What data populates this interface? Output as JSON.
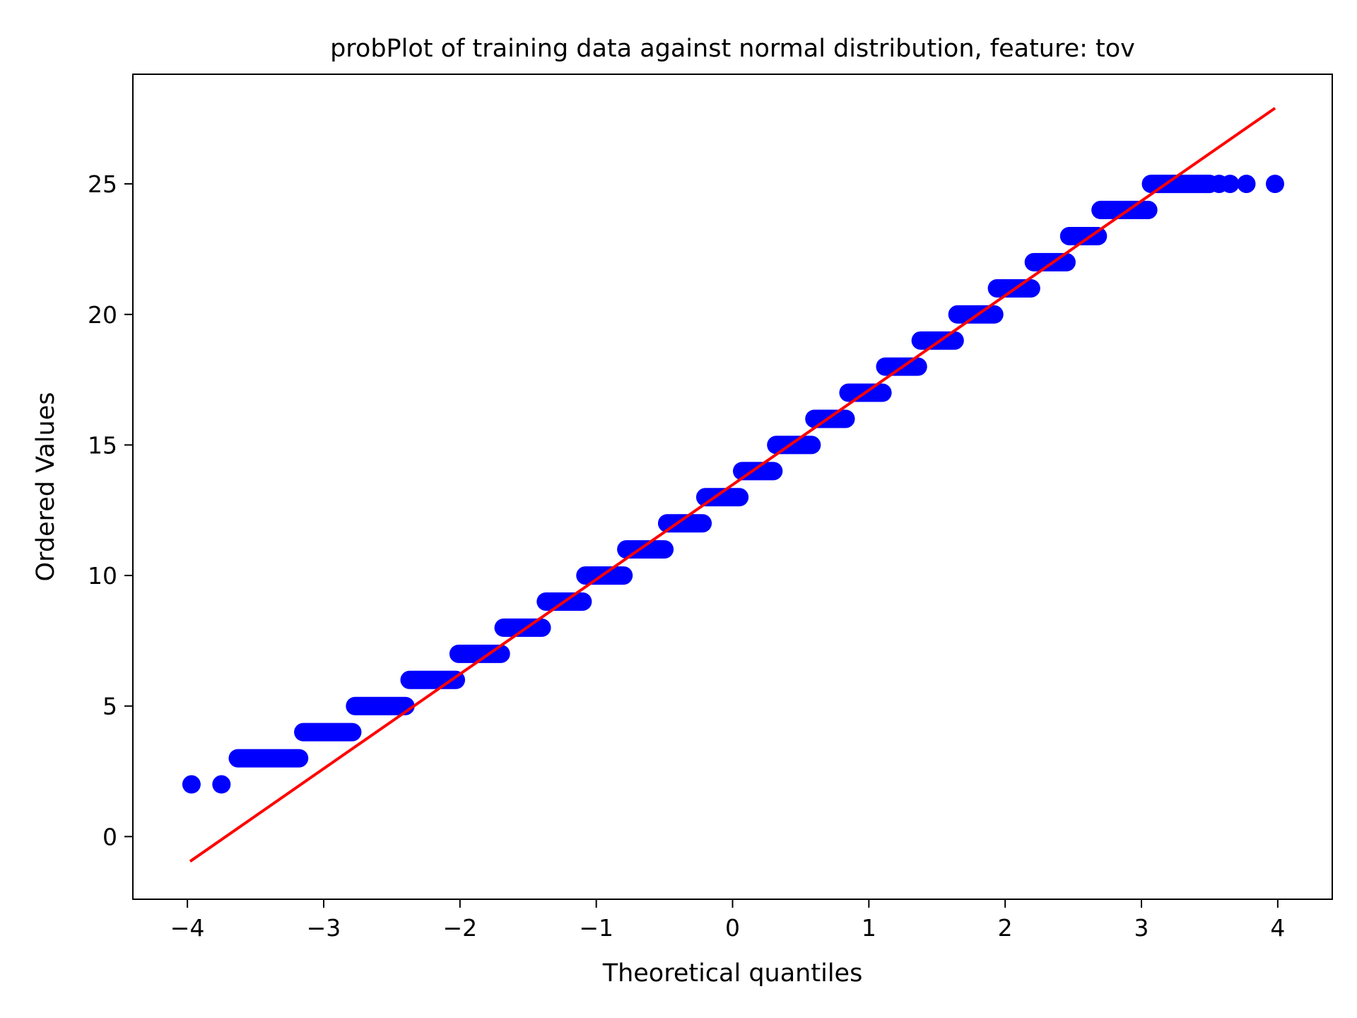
{
  "chart_data": {
    "type": "scatter",
    "title": "probPlot of training data against normal distribution, feature: tov",
    "xlabel": "Theoretical quantiles",
    "ylabel": "Ordered Values",
    "xlim": [
      -4.4,
      4.4
    ],
    "ylim": [
      -2.4,
      29.2
    ],
    "x_ticks": [
      -4,
      -3,
      -2,
      -1,
      0,
      1,
      2,
      3,
      4
    ],
    "x_tick_labels": [
      "−4",
      "−3",
      "−2",
      "−1",
      "0",
      "1",
      "2",
      "3",
      "4"
    ],
    "y_ticks": [
      0,
      5,
      10,
      15,
      20,
      25
    ],
    "y_tick_labels": [
      "0",
      "5",
      "10",
      "15",
      "20",
      "25"
    ],
    "grid": false,
    "series": [
      {
        "kind": "points",
        "color": "#0000ff",
        "segments": [
          {
            "y": 2,
            "x_from": -3.97,
            "x_to": -3.97
          },
          {
            "y": 2,
            "x_from": -3.75,
            "x_to": -3.75
          },
          {
            "y": 3,
            "x_from": -3.63,
            "x_to": -3.18
          },
          {
            "y": 4,
            "x_from": -3.15,
            "x_to": -2.79
          },
          {
            "y": 5,
            "x_from": -2.77,
            "x_to": -2.4
          },
          {
            "y": 6,
            "x_from": -2.37,
            "x_to": -2.03
          },
          {
            "y": 7,
            "x_from": -2.01,
            "x_to": -1.7
          },
          {
            "y": 8,
            "x_from": -1.68,
            "x_to": -1.4
          },
          {
            "y": 9,
            "x_from": -1.37,
            "x_to": -1.1
          },
          {
            "y": 10,
            "x_from": -1.08,
            "x_to": -0.8
          },
          {
            "y": 11,
            "x_from": -0.78,
            "x_to": -0.5
          },
          {
            "y": 12,
            "x_from": -0.48,
            "x_to": -0.22
          },
          {
            "y": 13,
            "x_from": -0.2,
            "x_to": 0.05
          },
          {
            "y": 14,
            "x_from": 0.07,
            "x_to": 0.3
          },
          {
            "y": 15,
            "x_from": 0.32,
            "x_to": 0.58
          },
          {
            "y": 16,
            "x_from": 0.6,
            "x_to": 0.83
          },
          {
            "y": 17,
            "x_from": 0.85,
            "x_to": 1.1
          },
          {
            "y": 18,
            "x_from": 1.12,
            "x_to": 1.36
          },
          {
            "y": 19,
            "x_from": 1.38,
            "x_to": 1.63
          },
          {
            "y": 20,
            "x_from": 1.65,
            "x_to": 1.92
          },
          {
            "y": 21,
            "x_from": 1.94,
            "x_to": 2.19
          },
          {
            "y": 22,
            "x_from": 2.21,
            "x_to": 2.45
          },
          {
            "y": 23,
            "x_from": 2.47,
            "x_to": 2.68
          },
          {
            "y": 24,
            "x_from": 2.7,
            "x_to": 3.05
          },
          {
            "y": 25,
            "x_from": 3.07,
            "x_to": 3.5
          },
          {
            "y": 25,
            "x_from": 3.57,
            "x_to": 3.57
          },
          {
            "y": 25,
            "x_from": 3.65,
            "x_to": 3.65
          },
          {
            "y": 25,
            "x_from": 3.77,
            "x_to": 3.77
          },
          {
            "y": 25,
            "x_from": 3.98,
            "x_to": 3.98
          }
        ]
      },
      {
        "kind": "fit-line",
        "color": "#ff0000",
        "points": [
          [
            -3.98,
            -0.95
          ],
          [
            3.98,
            27.9
          ]
        ]
      }
    ]
  }
}
